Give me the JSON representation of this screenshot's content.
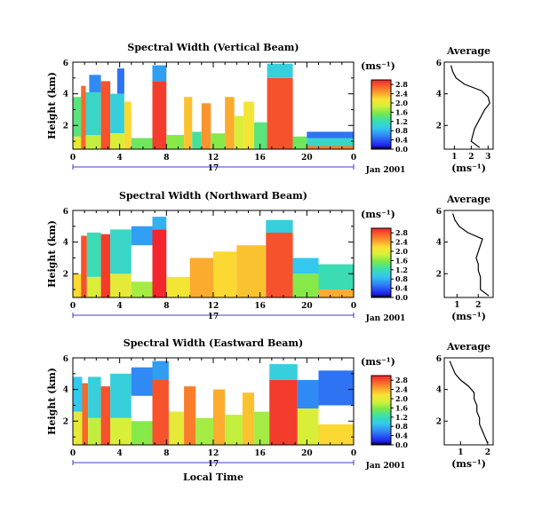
{
  "chart_data": [
    {
      "type": "heatmap",
      "title": "Spectral Width (Vertical Beam)",
      "ylabel": "Height (km)",
      "xticks": [
        "0",
        "4",
        "8",
        "12",
        "16",
        "20",
        "0"
      ],
      "xlim": [
        0,
        24
      ],
      "yticks": [
        "2",
        "4",
        "6"
      ],
      "ylim": [
        0.5,
        6.0
      ],
      "date_marker": "17",
      "date_label": "Jan 2001",
      "units": "(ms⁻¹)",
      "colorbar_ticks": [
        "0.0",
        "0.4",
        "0.8",
        "1.2",
        "1.6",
        "2.0",
        "2.4",
        "2.8"
      ],
      "colorbar_range": [
        0.0,
        3.0
      ],
      "cells": [
        {
          "t0": 0.0,
          "t1": 0.7,
          "z0": 0.5,
          "z1": 1.3,
          "v": 2.0
        },
        {
          "t0": 0.0,
          "t1": 0.7,
          "z0": 1.3,
          "z1": 3.8,
          "v": 1.4
        },
        {
          "t0": 0.7,
          "t1": 1.1,
          "z0": 0.5,
          "z1": 4.5,
          "v": 2.7
        },
        {
          "t0": 1.1,
          "t1": 2.4,
          "z0": 0.5,
          "z1": 1.4,
          "v": 1.8
        },
        {
          "t0": 1.1,
          "t1": 2.4,
          "z0": 1.4,
          "z1": 4.1,
          "v": 1.1
        },
        {
          "t0": 1.4,
          "t1": 2.4,
          "z0": 4.1,
          "z1": 5.2,
          "v": 0.6
        },
        {
          "t0": 2.4,
          "t1": 3.2,
          "z0": 0.5,
          "z1": 4.8,
          "v": 2.8
        },
        {
          "t0": 3.2,
          "t1": 4.4,
          "z0": 0.5,
          "z1": 1.5,
          "v": 1.9
        },
        {
          "t0": 3.2,
          "t1": 4.4,
          "z0": 1.5,
          "z1": 4.0,
          "v": 1.0
        },
        {
          "t0": 3.8,
          "t1": 4.4,
          "z0": 4.0,
          "z1": 5.6,
          "v": 0.5
        },
        {
          "t0": 4.4,
          "t1": 5.0,
          "z0": 0.5,
          "z1": 3.5,
          "v": 2.2
        },
        {
          "t0": 5.0,
          "t1": 6.8,
          "z0": 0.5,
          "z1": 1.2,
          "v": 1.5
        },
        {
          "t0": 6.8,
          "t1": 8.0,
          "z0": 0.5,
          "z1": 4.8,
          "v": 2.9
        },
        {
          "t0": 6.8,
          "t1": 8.0,
          "z0": 4.8,
          "z1": 5.8,
          "v": 0.7
        },
        {
          "t0": 8.0,
          "t1": 9.5,
          "z0": 0.5,
          "z1": 1.4,
          "v": 1.6
        },
        {
          "t0": 9.5,
          "t1": 10.2,
          "z0": 0.5,
          "z1": 3.8,
          "v": 2.3
        },
        {
          "t0": 10.2,
          "t1": 11.0,
          "z0": 0.5,
          "z1": 1.6,
          "v": 1.3
        },
        {
          "t0": 11.0,
          "t1": 11.8,
          "z0": 0.5,
          "z1": 3.4,
          "v": 2.5
        },
        {
          "t0": 11.8,
          "t1": 13.0,
          "z0": 0.5,
          "z1": 1.5,
          "v": 1.6
        },
        {
          "t0": 13.0,
          "t1": 13.8,
          "z0": 0.5,
          "z1": 3.8,
          "v": 2.4
        },
        {
          "t0": 13.8,
          "t1": 14.6,
          "z0": 0.5,
          "z1": 2.6,
          "v": 1.9
        },
        {
          "t0": 14.6,
          "t1": 15.5,
          "z0": 0.5,
          "z1": 3.5,
          "v": 2.1
        },
        {
          "t0": 15.5,
          "t1": 16.6,
          "z0": 0.5,
          "z1": 2.2,
          "v": 1.4
        },
        {
          "t0": 16.6,
          "t1": 18.8,
          "z0": 0.5,
          "z1": 5.0,
          "v": 2.8
        },
        {
          "t0": 16.6,
          "t1": 18.8,
          "z0": 5.0,
          "z1": 5.9,
          "v": 1.0
        },
        {
          "t0": 18.8,
          "t1": 20.0,
          "z0": 0.5,
          "z1": 1.3,
          "v": 1.5
        },
        {
          "t0": 20.0,
          "t1": 24.0,
          "z0": 0.5,
          "z1": 1.2,
          "v": 1.1
        },
        {
          "t0": 20.0,
          "t1": 24.0,
          "z0": 1.2,
          "z1": 1.6,
          "v": 0.5
        },
        {
          "t0": 20.0,
          "t1": 24.0,
          "z0": 0.5,
          "z1": 0.7,
          "v": 2.6
        }
      ],
      "profile": {
        "title": "Average",
        "xlabel": "(ms⁻¹)",
        "xticks": [
          "1",
          "2",
          "3"
        ],
        "xlim": [
          0.4,
          3.3
        ],
        "yticks": [
          "2",
          "4",
          "6"
        ],
        "ylim": [
          0.5,
          6.0
        ],
        "heights": [
          0.6,
          1.0,
          1.4,
          1.8,
          2.2,
          2.6,
          3.0,
          3.4,
          3.8,
          4.2,
          4.6,
          5.0,
          5.4,
          5.8
        ],
        "values": [
          2.5,
          2.0,
          2.1,
          2.2,
          2.4,
          2.6,
          2.8,
          3.1,
          3.0,
          2.6,
          1.6,
          1.1,
          0.9,
          0.8
        ]
      }
    },
    {
      "type": "heatmap",
      "title": "Spectral Width (Northward Beam)",
      "ylabel": "Height (km)",
      "xticks": [
        "0",
        "4",
        "8",
        "12",
        "16",
        "20",
        "0"
      ],
      "xlim": [
        0,
        24
      ],
      "yticks": [
        "2",
        "4",
        "6"
      ],
      "ylim": [
        0.5,
        6.0
      ],
      "date_marker": "17",
      "date_label": "Jan 2001",
      "units": "(ms⁻¹)",
      "colorbar_ticks": [
        "0.0",
        "0.4",
        "0.8",
        "1.2",
        "1.6",
        "2.0",
        "2.4",
        "2.8"
      ],
      "colorbar_range": [
        0.0,
        3.0
      ],
      "cells": [
        {
          "t0": 0.0,
          "t1": 0.7,
          "z0": 0.5,
          "z1": 2.0,
          "v": 2.2
        },
        {
          "t0": 0.7,
          "t1": 1.2,
          "z0": 0.5,
          "z1": 4.4,
          "v": 2.8
        },
        {
          "t0": 1.2,
          "t1": 2.4,
          "z0": 0.5,
          "z1": 1.8,
          "v": 1.9
        },
        {
          "t0": 1.2,
          "t1": 2.4,
          "z0": 1.8,
          "z1": 4.6,
          "v": 1.2
        },
        {
          "t0": 2.4,
          "t1": 3.2,
          "z0": 0.5,
          "z1": 4.5,
          "v": 2.9
        },
        {
          "t0": 3.2,
          "t1": 5.0,
          "z0": 0.5,
          "z1": 2.0,
          "v": 2.0
        },
        {
          "t0": 3.2,
          "t1": 5.0,
          "z0": 2.0,
          "z1": 4.8,
          "v": 1.1
        },
        {
          "t0": 5.0,
          "t1": 6.8,
          "z0": 0.5,
          "z1": 1.5,
          "v": 1.7
        },
        {
          "t0": 5.0,
          "t1": 6.8,
          "z0": 3.8,
          "z1": 5.0,
          "v": 0.7
        },
        {
          "t0": 6.8,
          "t1": 8.0,
          "z0": 0.5,
          "z1": 4.8,
          "v": 3.0
        },
        {
          "t0": 6.8,
          "t1": 8.0,
          "z0": 4.8,
          "z1": 5.6,
          "v": 0.8
        },
        {
          "t0": 8.0,
          "t1": 10.0,
          "z0": 0.5,
          "z1": 1.8,
          "v": 2.1
        },
        {
          "t0": 10.0,
          "t1": 12.0,
          "z0": 0.5,
          "z1": 3.0,
          "v": 2.4
        },
        {
          "t0": 12.0,
          "t1": 14.0,
          "z0": 0.5,
          "z1": 3.4,
          "v": 2.2
        },
        {
          "t0": 14.0,
          "t1": 16.5,
          "z0": 0.5,
          "z1": 3.8,
          "v": 2.3
        },
        {
          "t0": 16.5,
          "t1": 18.8,
          "z0": 0.5,
          "z1": 4.6,
          "v": 2.8
        },
        {
          "t0": 16.5,
          "t1": 18.8,
          "z0": 4.6,
          "z1": 5.4,
          "v": 1.0
        },
        {
          "t0": 18.8,
          "t1": 21.0,
          "z0": 0.5,
          "z1": 2.0,
          "v": 1.6
        },
        {
          "t0": 18.8,
          "t1": 21.0,
          "z0": 2.0,
          "z1": 3.0,
          "v": 0.9
        },
        {
          "t0": 21.0,
          "t1": 24.0,
          "z0": 0.5,
          "z1": 1.0,
          "v": 2.4
        },
        {
          "t0": 21.0,
          "t1": 24.0,
          "z0": 1.0,
          "z1": 2.6,
          "v": 1.2
        }
      ],
      "profile": {
        "title": "Average",
        "xlabel": "(ms⁻¹)",
        "xticks": [
          "1",
          "2"
        ],
        "xlim": [
          0.4,
          2.7
        ],
        "yticks": [
          "2",
          "4",
          "6"
        ],
        "ylim": [
          0.5,
          6.0
        ],
        "heights": [
          0.6,
          1.0,
          1.4,
          1.8,
          2.2,
          2.6,
          3.0,
          3.4,
          3.8,
          4.2,
          4.6,
          5.0,
          5.4,
          5.8
        ],
        "values": [
          2.5,
          2.1,
          2.1,
          2.1,
          2.0,
          2.0,
          1.9,
          2.0,
          2.1,
          2.2,
          1.5,
          1.1,
          0.9,
          0.8
        ]
      }
    },
    {
      "type": "heatmap",
      "title": "Spectral Width (Eastward Beam)",
      "ylabel": "Height (km)",
      "xlabel": "Local Time",
      "xticks": [
        "0",
        "4",
        "8",
        "12",
        "16",
        "20",
        "0"
      ],
      "xlim": [
        0,
        24
      ],
      "yticks": [
        "2",
        "4",
        "6"
      ],
      "ylim": [
        0.5,
        6.0
      ],
      "date_marker": "17",
      "date_label": "Jan 2001",
      "units": "(ms⁻¹)",
      "colorbar_ticks": [
        "0.0",
        "0.4",
        "0.8",
        "1.2",
        "1.6",
        "2.0",
        "2.4",
        "2.8"
      ],
      "colorbar_range": [
        0.0,
        3.0
      ],
      "cells": [
        {
          "t0": 0.0,
          "t1": 0.8,
          "z0": 0.5,
          "z1": 2.6,
          "v": 2.0
        },
        {
          "t0": 0.0,
          "t1": 0.8,
          "z0": 2.6,
          "z1": 4.8,
          "v": 0.9
        },
        {
          "t0": 0.8,
          "t1": 1.3,
          "z0": 0.5,
          "z1": 4.4,
          "v": 2.7
        },
        {
          "t0": 1.3,
          "t1": 2.4,
          "z0": 0.5,
          "z1": 2.2,
          "v": 1.8
        },
        {
          "t0": 1.3,
          "t1": 2.4,
          "z0": 2.2,
          "z1": 4.8,
          "v": 1.0
        },
        {
          "t0": 2.4,
          "t1": 3.2,
          "z0": 0.5,
          "z1": 4.2,
          "v": 2.8
        },
        {
          "t0": 3.2,
          "t1": 5.0,
          "z0": 0.5,
          "z1": 2.2,
          "v": 1.9
        },
        {
          "t0": 3.2,
          "t1": 5.0,
          "z0": 2.2,
          "z1": 5.0,
          "v": 1.0
        },
        {
          "t0": 5.0,
          "t1": 6.8,
          "z0": 0.5,
          "z1": 2.0,
          "v": 1.6
        },
        {
          "t0": 5.0,
          "t1": 6.8,
          "z0": 3.6,
          "z1": 5.4,
          "v": 0.6
        },
        {
          "t0": 6.8,
          "t1": 8.2,
          "z0": 0.5,
          "z1": 4.6,
          "v": 2.8
        },
        {
          "t0": 6.8,
          "t1": 8.2,
          "z0": 4.6,
          "z1": 5.8,
          "v": 0.7
        },
        {
          "t0": 8.2,
          "t1": 9.5,
          "z0": 0.5,
          "z1": 2.6,
          "v": 2.0
        },
        {
          "t0": 9.5,
          "t1": 10.5,
          "z0": 0.5,
          "z1": 4.2,
          "v": 2.6
        },
        {
          "t0": 10.5,
          "t1": 12.0,
          "z0": 0.5,
          "z1": 2.2,
          "v": 1.7
        },
        {
          "t0": 12.0,
          "t1": 13.0,
          "z0": 0.5,
          "z1": 4.0,
          "v": 2.4
        },
        {
          "t0": 13.0,
          "t1": 14.5,
          "z0": 0.5,
          "z1": 2.4,
          "v": 1.8
        },
        {
          "t0": 14.5,
          "t1": 15.5,
          "z0": 0.5,
          "z1": 3.8,
          "v": 2.3
        },
        {
          "t0": 15.5,
          "t1": 16.8,
          "z0": 0.5,
          "z1": 2.6,
          "v": 1.7
        },
        {
          "t0": 16.8,
          "t1": 19.2,
          "z0": 0.5,
          "z1": 4.6,
          "v": 2.9
        },
        {
          "t0": 16.8,
          "t1": 19.2,
          "z0": 4.6,
          "z1": 5.6,
          "v": 1.0
        },
        {
          "t0": 19.2,
          "t1": 21.0,
          "z0": 0.5,
          "z1": 2.8,
          "v": 1.9
        },
        {
          "t0": 19.2,
          "t1": 21.0,
          "z0": 2.8,
          "z1": 4.6,
          "v": 0.6
        },
        {
          "t0": 21.0,
          "t1": 24.0,
          "z0": 0.5,
          "z1": 1.8,
          "v": 2.2
        },
        {
          "t0": 21.0,
          "t1": 24.0,
          "z0": 3.0,
          "z1": 5.2,
          "v": 0.5
        }
      ],
      "profile": {
        "title": "Average",
        "xlabel": "(ms⁻¹)",
        "xticks": [
          "1",
          "2"
        ],
        "xlim": [
          0.4,
          2.2
        ],
        "yticks": [
          "2",
          "4",
          "6"
        ],
        "ylim": [
          0.5,
          6.0
        ],
        "heights": [
          0.6,
          1.0,
          1.4,
          1.8,
          2.2,
          2.6,
          3.0,
          3.4,
          3.8,
          4.2,
          4.6,
          5.0,
          5.4,
          5.8
        ],
        "values": [
          2.0,
          1.9,
          1.8,
          1.7,
          1.7,
          1.6,
          1.6,
          1.5,
          1.5,
          1.3,
          1.0,
          0.8,
          0.7,
          0.6
        ]
      }
    }
  ]
}
